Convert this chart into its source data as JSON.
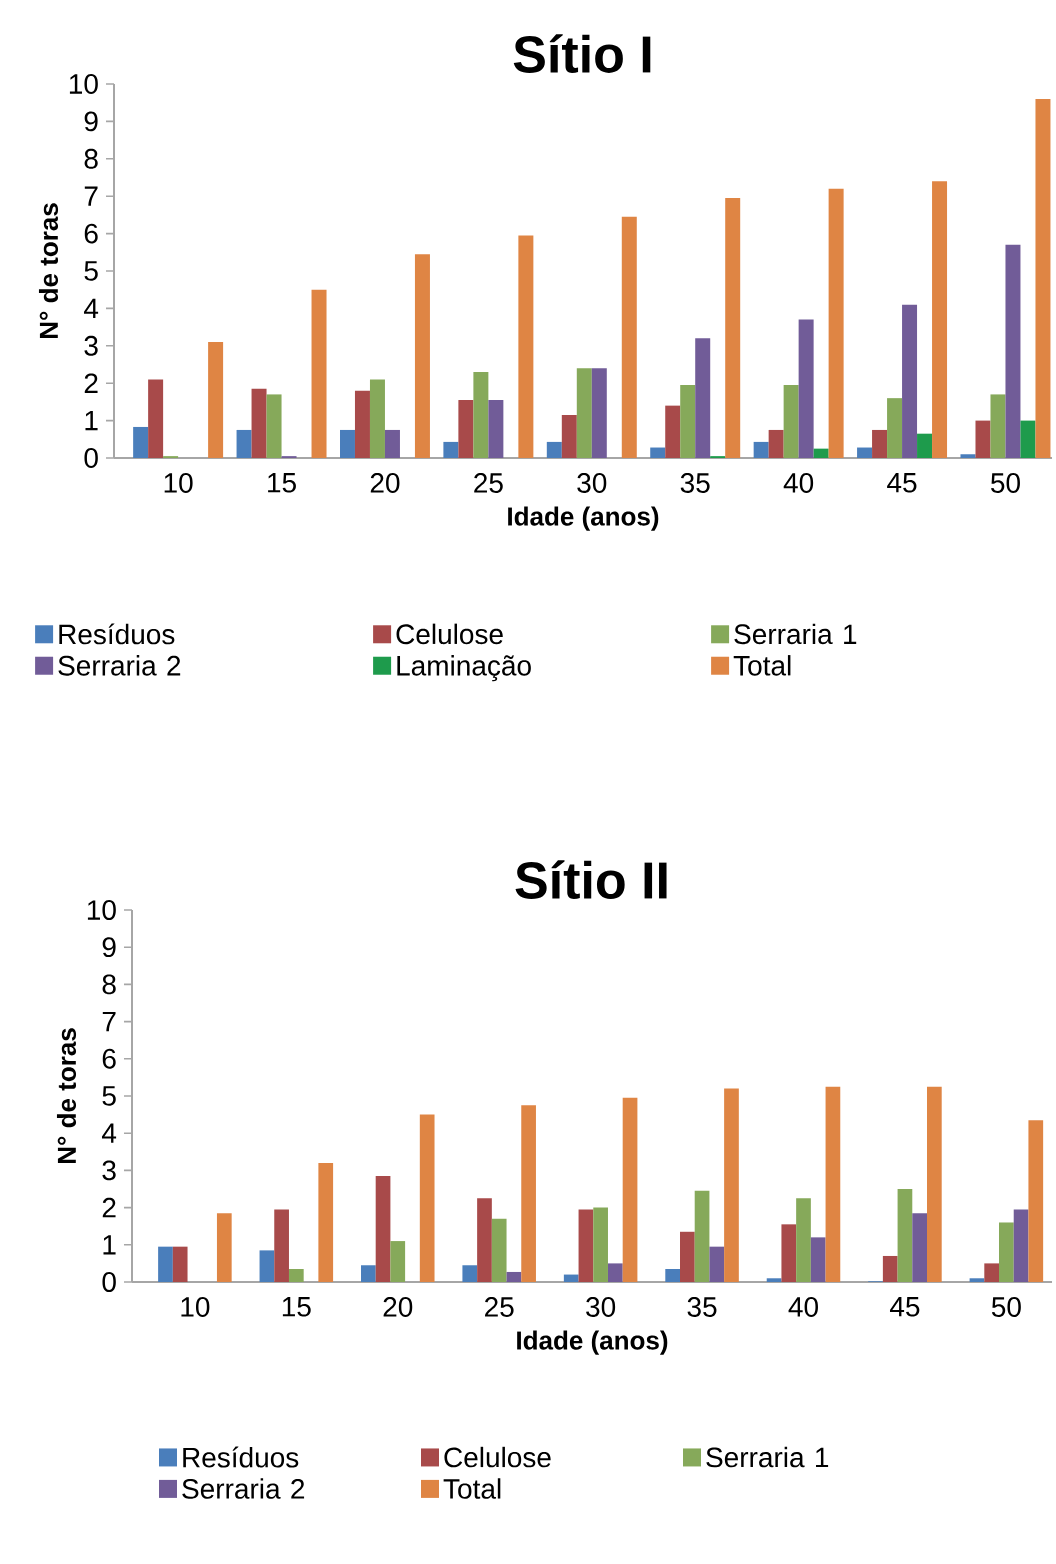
{
  "chart_data": [
    {
      "type": "bar",
      "title": "Sítio I",
      "xlabel": "Idade (anos)",
      "ylabel": "N° de toras",
      "categories": [
        "10",
        "15",
        "20",
        "25",
        "30",
        "35",
        "40",
        "45",
        "50"
      ],
      "ylim": [
        0,
        10
      ],
      "yticks": [
        0,
        1,
        2,
        3,
        4,
        5,
        6,
        7,
        8,
        9,
        10
      ],
      "legend": "bottom",
      "series": [
        {
          "name": "Resíduos",
          "color": "#4a7ebb",
          "values": [
            0.83,
            0.75,
            0.75,
            0.43,
            0.43,
            0.28,
            0.43,
            0.28,
            0.1
          ]
        },
        {
          "name": "Celulose",
          "color": "#a84a4a",
          "values": [
            2.1,
            1.85,
            1.8,
            1.55,
            1.15,
            1.4,
            0.75,
            0.75,
            1.0
          ]
        },
        {
          "name": "Serraria 1",
          "color": "#86a95a",
          "values": [
            0.05,
            1.7,
            2.1,
            2.3,
            2.4,
            1.95,
            1.95,
            1.6,
            1.7
          ]
        },
        {
          "name": "Serraria 2",
          "color": "#715c98",
          "values": [
            0,
            0.05,
            0.75,
            1.55,
            2.4,
            3.2,
            3.7,
            4.1,
            5.7
          ]
        },
        {
          "name": "Laminação",
          "color": "#1e9b4c",
          "values": [
            0,
            0,
            0,
            0,
            0,
            0.05,
            0.25,
            0.65,
            1.0
          ]
        },
        {
          "name": "Total",
          "color": "#df8544",
          "values": [
            3.1,
            4.5,
            5.45,
            5.95,
            6.45,
            6.95,
            7.2,
            7.4,
            9.6
          ]
        }
      ]
    },
    {
      "type": "bar",
      "title": "Sítio II",
      "xlabel": "Idade (anos)",
      "ylabel": "N° de toras",
      "categories": [
        "10",
        "15",
        "20",
        "25",
        "30",
        "35",
        "40",
        "45",
        "50"
      ],
      "ylim": [
        0,
        10
      ],
      "yticks": [
        0,
        1,
        2,
        3,
        4,
        5,
        6,
        7,
        8,
        9,
        10
      ],
      "legend": "bottom",
      "series": [
        {
          "name": "Resíduos",
          "color": "#4a7ebb",
          "values": [
            0.95,
            0.85,
            0.45,
            0.45,
            0.2,
            0.35,
            0.1,
            0.02,
            0.1
          ]
        },
        {
          "name": "Celulose",
          "color": "#a84a4a",
          "values": [
            0.95,
            1.95,
            2.85,
            2.25,
            1.95,
            1.35,
            1.55,
            0.7,
            0.5
          ]
        },
        {
          "name": "Serraria 1",
          "color": "#86a95a",
          "values": [
            0,
            0.35,
            1.1,
            1.7,
            2.0,
            2.45,
            2.25,
            2.5,
            1.6
          ]
        },
        {
          "name": "Serraria 2",
          "color": "#715c98",
          "values": [
            0,
            0,
            0,
            0.27,
            0.5,
            0.95,
            1.2,
            1.85,
            1.95
          ]
        },
        {
          "name": "Total",
          "color": "#df8544",
          "values": [
            1.85,
            3.2,
            4.5,
            4.75,
            4.95,
            5.2,
            5.25,
            5.25,
            4.35
          ]
        }
      ]
    }
  ]
}
